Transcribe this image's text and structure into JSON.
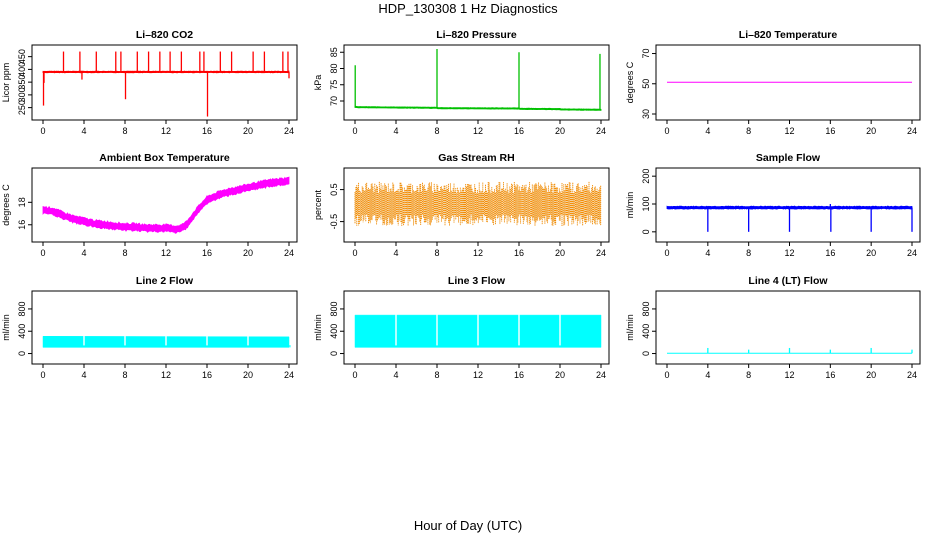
{
  "figure": {
    "title": "HDP_130308  1 Hz Diagnostics",
    "xlabel": "Hour of Day (UTC)"
  },
  "chart_data": [
    {
      "type": "line",
      "title": "Li–820 CO2",
      "ylabel": "Licor ppm",
      "color": "#ff0000",
      "xlim": [
        0,
        24
      ],
      "ylim": [
        225,
        480
      ],
      "yticks": [
        250,
        300,
        350,
        400,
        450
      ],
      "xticks": [
        0,
        4,
        8,
        12,
        16,
        20,
        24
      ],
      "series": [
        {
          "x": [
            0,
            6,
            12,
            18,
            24
          ],
          "y": [
            390,
            390,
            390,
            390,
            390
          ]
        }
      ],
      "band_halfwidth": 3,
      "spikes": [
        {
          "x": 0.05,
          "y": 258
        },
        {
          "x": 0.1,
          "y": 347
        },
        {
          "x": 2.0,
          "y": 470
        },
        {
          "x": 3.6,
          "y": 470
        },
        {
          "x": 3.8,
          "y": 360
        },
        {
          "x": 5.2,
          "y": 470
        },
        {
          "x": 7.1,
          "y": 470
        },
        {
          "x": 7.6,
          "y": 470
        },
        {
          "x": 8.05,
          "y": 283
        },
        {
          "x": 9.2,
          "y": 470
        },
        {
          "x": 10.3,
          "y": 470
        },
        {
          "x": 11.4,
          "y": 470
        },
        {
          "x": 12.4,
          "y": 470
        },
        {
          "x": 13.5,
          "y": 470
        },
        {
          "x": 15.3,
          "y": 470
        },
        {
          "x": 15.7,
          "y": 470
        },
        {
          "x": 16.05,
          "y": 215
        },
        {
          "x": 17.3,
          "y": 470
        },
        {
          "x": 18.4,
          "y": 470
        },
        {
          "x": 20.5,
          "y": 470
        },
        {
          "x": 21.6,
          "y": 470
        },
        {
          "x": 23.4,
          "y": 470
        },
        {
          "x": 23.9,
          "y": 470
        },
        {
          "x": 24.0,
          "y": 365
        }
      ]
    },
    {
      "type": "line",
      "title": "Li–820 Pressure",
      "ylabel": "kPa",
      "color": "#00c000",
      "xlim": [
        0,
        24
      ],
      "ylim": [
        66,
        86
      ],
      "yticks": [
        70,
        75,
        80,
        85
      ],
      "xticks": [
        0,
        4,
        8,
        12,
        16,
        20,
        24
      ],
      "series": [
        {
          "x": [
            0,
            0.3,
            8,
            8.1,
            16,
            16.1,
            20,
            20.1,
            24
          ],
          "y": [
            68.2,
            68.1,
            67.9,
            67.8,
            67.7,
            67.6,
            67.5,
            67.4,
            67.3
          ]
        }
      ],
      "band_halfwidth": 0.2,
      "spikes": [
        {
          "x": 0.02,
          "y": 81
        },
        {
          "x": 8.0,
          "y": 86
        },
        {
          "x": 16.0,
          "y": 85
        },
        {
          "x": 23.9,
          "y": 84.5
        }
      ]
    },
    {
      "type": "line",
      "title": "Li–820 Temperature",
      "ylabel": "degrees C",
      "color": "#ff00ff",
      "xlim": [
        0,
        24
      ],
      "ylim": [
        30,
        73
      ],
      "yticks": [
        30,
        50,
        70
      ],
      "xticks": [
        0,
        4,
        8,
        12,
        16,
        20,
        24
      ],
      "series": [
        {
          "x": [
            0,
            24
          ],
          "y": [
            51.0,
            51.0
          ]
        }
      ],
      "band_halfwidth": 0,
      "spikes": []
    },
    {
      "type": "line",
      "title": "Ambient Box Temperature",
      "ylabel": "degrees C",
      "color": "#ff00ff",
      "xlim": [
        0,
        24
      ],
      "ylim": [
        15.0,
        20.7
      ],
      "yticks": [
        16,
        18
      ],
      "xticks": [
        0,
        4,
        8,
        12,
        16,
        20,
        24
      ],
      "series": [
        {
          "x": [
            0,
            1,
            2,
            3,
            4,
            5,
            6,
            7,
            8,
            9,
            10,
            11,
            12,
            13,
            13.5,
            14,
            15,
            16,
            17,
            18,
            19,
            20,
            21,
            22,
            23,
            24
          ],
          "y": [
            17.3,
            17.2,
            16.8,
            16.5,
            16.3,
            16.1,
            16.0,
            15.9,
            15.8,
            15.8,
            15.7,
            15.7,
            15.7,
            15.6,
            15.7,
            16.0,
            17.2,
            18.2,
            18.6,
            18.9,
            19.1,
            19.3,
            19.5,
            19.7,
            19.8,
            19.9
          ]
        }
      ],
      "band_halfwidth": 0.35,
      "spikes": []
    },
    {
      "type": "line",
      "title": "Gas Stream RH",
      "ylabel": "percent",
      "color": "#ff8c00",
      "xlim": [
        0,
        24
      ],
      "ylim": [
        -0.95,
        1.05
      ],
      "yticks": [
        -0.5,
        0.5
      ],
      "xticks": [
        0,
        4,
        8,
        12,
        16,
        20,
        24
      ],
      "series": [
        {
          "x": [
            0,
            24
          ],
          "y": [
            0.05,
            0.05
          ]
        }
      ],
      "band_halfwidth": 0.6,
      "noise": true,
      "spikes": []
    },
    {
      "type": "line",
      "title": "Sample Flow",
      "ylabel": "ml/min",
      "color": "#0000ff",
      "xlim": [
        0,
        24
      ],
      "ylim": [
        -15,
        215
      ],
      "yticks": [
        0,
        100,
        200
      ],
      "xticks": [
        0,
        4,
        8,
        12,
        16,
        20,
        24
      ],
      "series": [
        {
          "x": [
            0,
            24
          ],
          "y": [
            87,
            87
          ]
        }
      ],
      "band_halfwidth": 5,
      "spikes": [
        {
          "x": 4.0,
          "y": 0
        },
        {
          "x": 8.0,
          "y": 0
        },
        {
          "x": 12.0,
          "y": 0
        },
        {
          "x": 16.0,
          "y": 100
        },
        {
          "x": 16.05,
          "y": 0
        },
        {
          "x": 20.0,
          "y": 0
        },
        {
          "x": 24.0,
          "y": 0
        }
      ]
    },
    {
      "type": "area",
      "title": "Line 2 Flow",
      "ylabel": "ml/min",
      "color": "#00ffff",
      "xlim": [
        0,
        24
      ],
      "ylim": [
        -80,
        1050
      ],
      "yticks": [
        0,
        400,
        800
      ],
      "xticks": [
        0,
        4,
        8,
        12,
        16,
        20,
        24
      ],
      "series": [
        {
          "x": [
            0,
            24
          ],
          "y_low": [
            110,
            110
          ],
          "y_high": [
            310,
            300
          ]
        }
      ],
      "gaps": [
        4,
        8,
        12,
        16,
        20
      ],
      "end_tail": {
        "x": 24.0,
        "y": 150
      }
    },
    {
      "type": "area",
      "title": "Line 3 Flow",
      "ylabel": "ml/min",
      "color": "#00ffff",
      "xlim": [
        0,
        24
      ],
      "ylim": [
        -80,
        1050
      ],
      "yticks": [
        0,
        400,
        800
      ],
      "xticks": [
        0,
        4,
        8,
        12,
        16,
        20,
        24
      ],
      "series": [
        {
          "x": [
            0,
            24
          ],
          "y_low": [
            110,
            110
          ],
          "y_high": [
            690,
            690
          ]
        }
      ],
      "gaps": [
        4,
        8,
        12,
        16,
        20
      ],
      "end_tail": null
    },
    {
      "type": "line",
      "title": "Line 4 (LT) Flow",
      "ylabel": "ml/min",
      "color": "#00ffff",
      "xlim": [
        0,
        24
      ],
      "ylim": [
        -80,
        1050
      ],
      "yticks": [
        0,
        400,
        800
      ],
      "xticks": [
        0,
        4,
        8,
        12,
        16,
        20,
        24
      ],
      "series": [
        {
          "x": [
            0,
            24
          ],
          "y": [
            5,
            5
          ]
        }
      ],
      "band_halfwidth": 0,
      "spikes": [
        {
          "x": 4.0,
          "y": 100
        },
        {
          "x": 8.0,
          "y": 70
        },
        {
          "x": 12.0,
          "y": 100
        },
        {
          "x": 16.0,
          "y": 70
        },
        {
          "x": 20.0,
          "y": 100
        },
        {
          "x": 24.0,
          "y": 70
        }
      ]
    }
  ]
}
